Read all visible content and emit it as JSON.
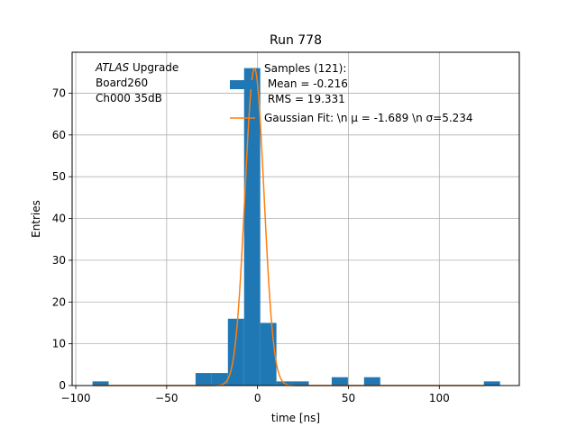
{
  "chart_data": {
    "type": "bar",
    "title": "Run 778",
    "xlabel": "time [ns]",
    "ylabel": "Entries",
    "xlim": [
      -102,
      144
    ],
    "ylim": [
      0,
      79.8
    ],
    "grid": true,
    "xticks": [
      -100,
      -50,
      0,
      50,
      100
    ],
    "xtick_labels": [
      "−100",
      "−50",
      "0",
      "50",
      "100"
    ],
    "yticks": [
      0,
      10,
      20,
      30,
      40,
      50,
      60,
      70
    ],
    "yticks_labels": [
      "0",
      "10",
      "20",
      "30",
      "40",
      "50",
      "60",
      "70"
    ],
    "bin_width": 8.9,
    "bins": [
      {
        "x0": -90.8,
        "count": 1
      },
      {
        "x0": -34.1,
        "count": 3
      },
      {
        "x0": -25.2,
        "count": 3
      },
      {
        "x0": -16.3,
        "count": 16
      },
      {
        "x0": -7.4,
        "count": 76
      },
      {
        "x0": 1.5,
        "count": 15
      },
      {
        "x0": 10.4,
        "count": 1
      },
      {
        "x0": 19.3,
        "count": 1
      },
      {
        "x0": 40.8,
        "count": 2
      },
      {
        "x0": 58.6,
        "count": 2
      },
      {
        "x0": 124.5,
        "count": 1
      }
    ],
    "gaussian": {
      "amplitude": 76,
      "mu": -1.689,
      "sigma": 5.234,
      "x_range": [
        -90,
        125
      ]
    },
    "series": [
      {
        "name": "Samples (121):\n Mean = -0.216\n RMS = 19.331",
        "kind": "histogram",
        "color": "#1f77b4"
      },
      {
        "name": "Gaussian Fit: \\n μ = -1.689 \\n σ=5.234",
        "kind": "line",
        "color": "#ff7f0e"
      }
    ],
    "legend_position": "top-center",
    "annotation": {
      "lines": [
        {
          "italic": "ATLAS",
          "rest": " Upgrade"
        },
        {
          "italic": "",
          "rest": " Board260"
        },
        {
          "italic": "",
          "rest": " Ch000 35dB"
        }
      ]
    }
  }
}
